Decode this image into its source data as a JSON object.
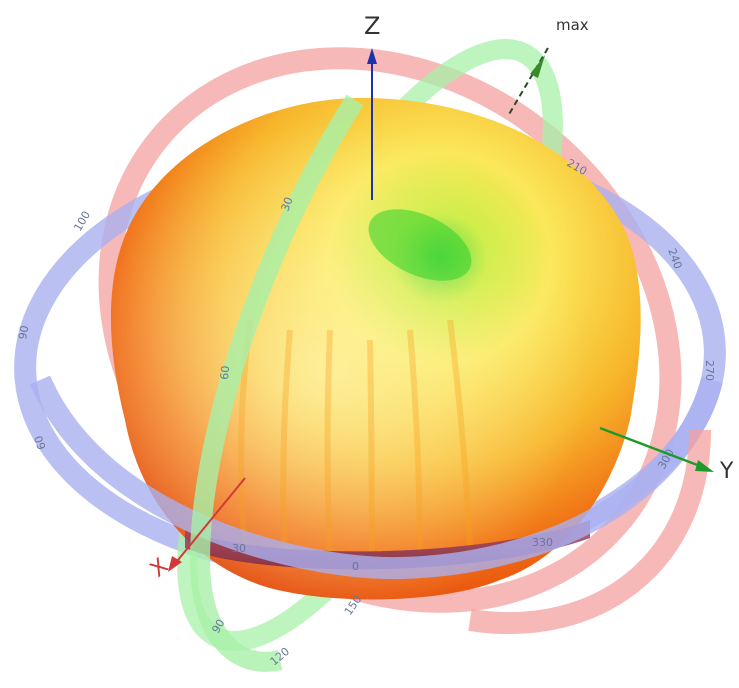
{
  "axes": {
    "z": "Z",
    "y": "Y",
    "x": "X",
    "max": "max"
  },
  "colors": {
    "background": "#ffffff",
    "ring_red": "#f4a0a0",
    "ring_blue": "#aab0f0",
    "ring_green": "#a8f0a8",
    "z_axis": "#1a33aa",
    "y_axis": "#1f9a2a",
    "x_axis": "#d23a3a",
    "pattern_hot": "#f26a12",
    "pattern_mid": "#f5d22a",
    "pattern_cool": "#3ad12a",
    "equator_band": "#9a3a5a"
  },
  "ring_ticks": {
    "blue_ring": [
      "100",
      "90",
      "60",
      "30",
      "0",
      "330",
      "300",
      "270",
      "240",
      "210",
      "180",
      "150"
    ],
    "green_ring": [
      "30",
      "60",
      "90",
      "120",
      "150"
    ]
  }
}
